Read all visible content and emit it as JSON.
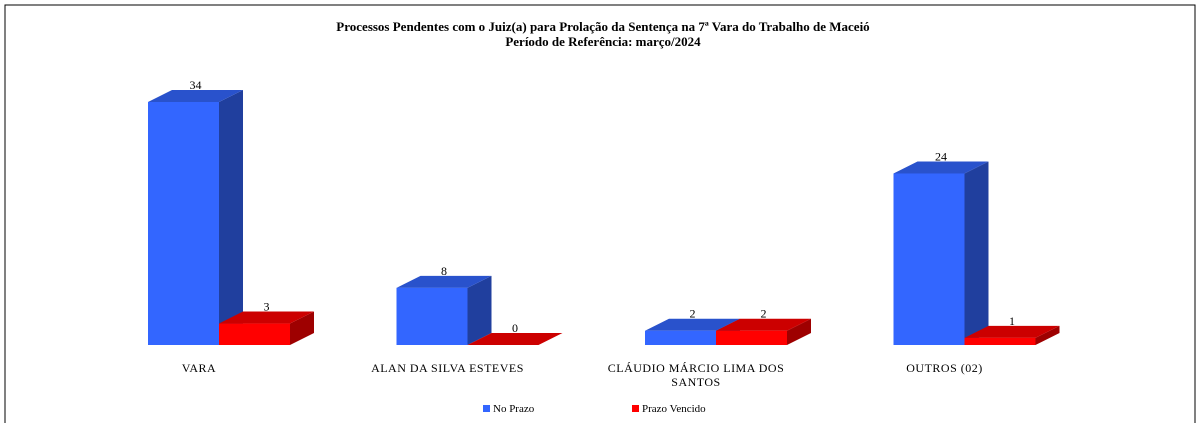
{
  "chart_data": {
    "type": "bar3d",
    "title": "Processos Pendentes com o Juiz(a) para Prolação da Sentença na 7ª Vara do Trabalho de Maceió",
    "subtitle": "Período de Referência: março/2024",
    "categories": [
      "VARA",
      "ALAN DA SILVA ESTEVES",
      "CLÁUDIO MÁRCIO LIMA DOS SANTOS",
      "OUTROS (02)"
    ],
    "series": [
      {
        "name": "No Prazo",
        "color": "#3366ff",
        "values": [
          34,
          8,
          2,
          24
        ]
      },
      {
        "name": "Prazo Vencido",
        "color": "#ff0000",
        "values": [
          3,
          0,
          2,
          1
        ]
      }
    ],
    "legend": "bottom"
  }
}
